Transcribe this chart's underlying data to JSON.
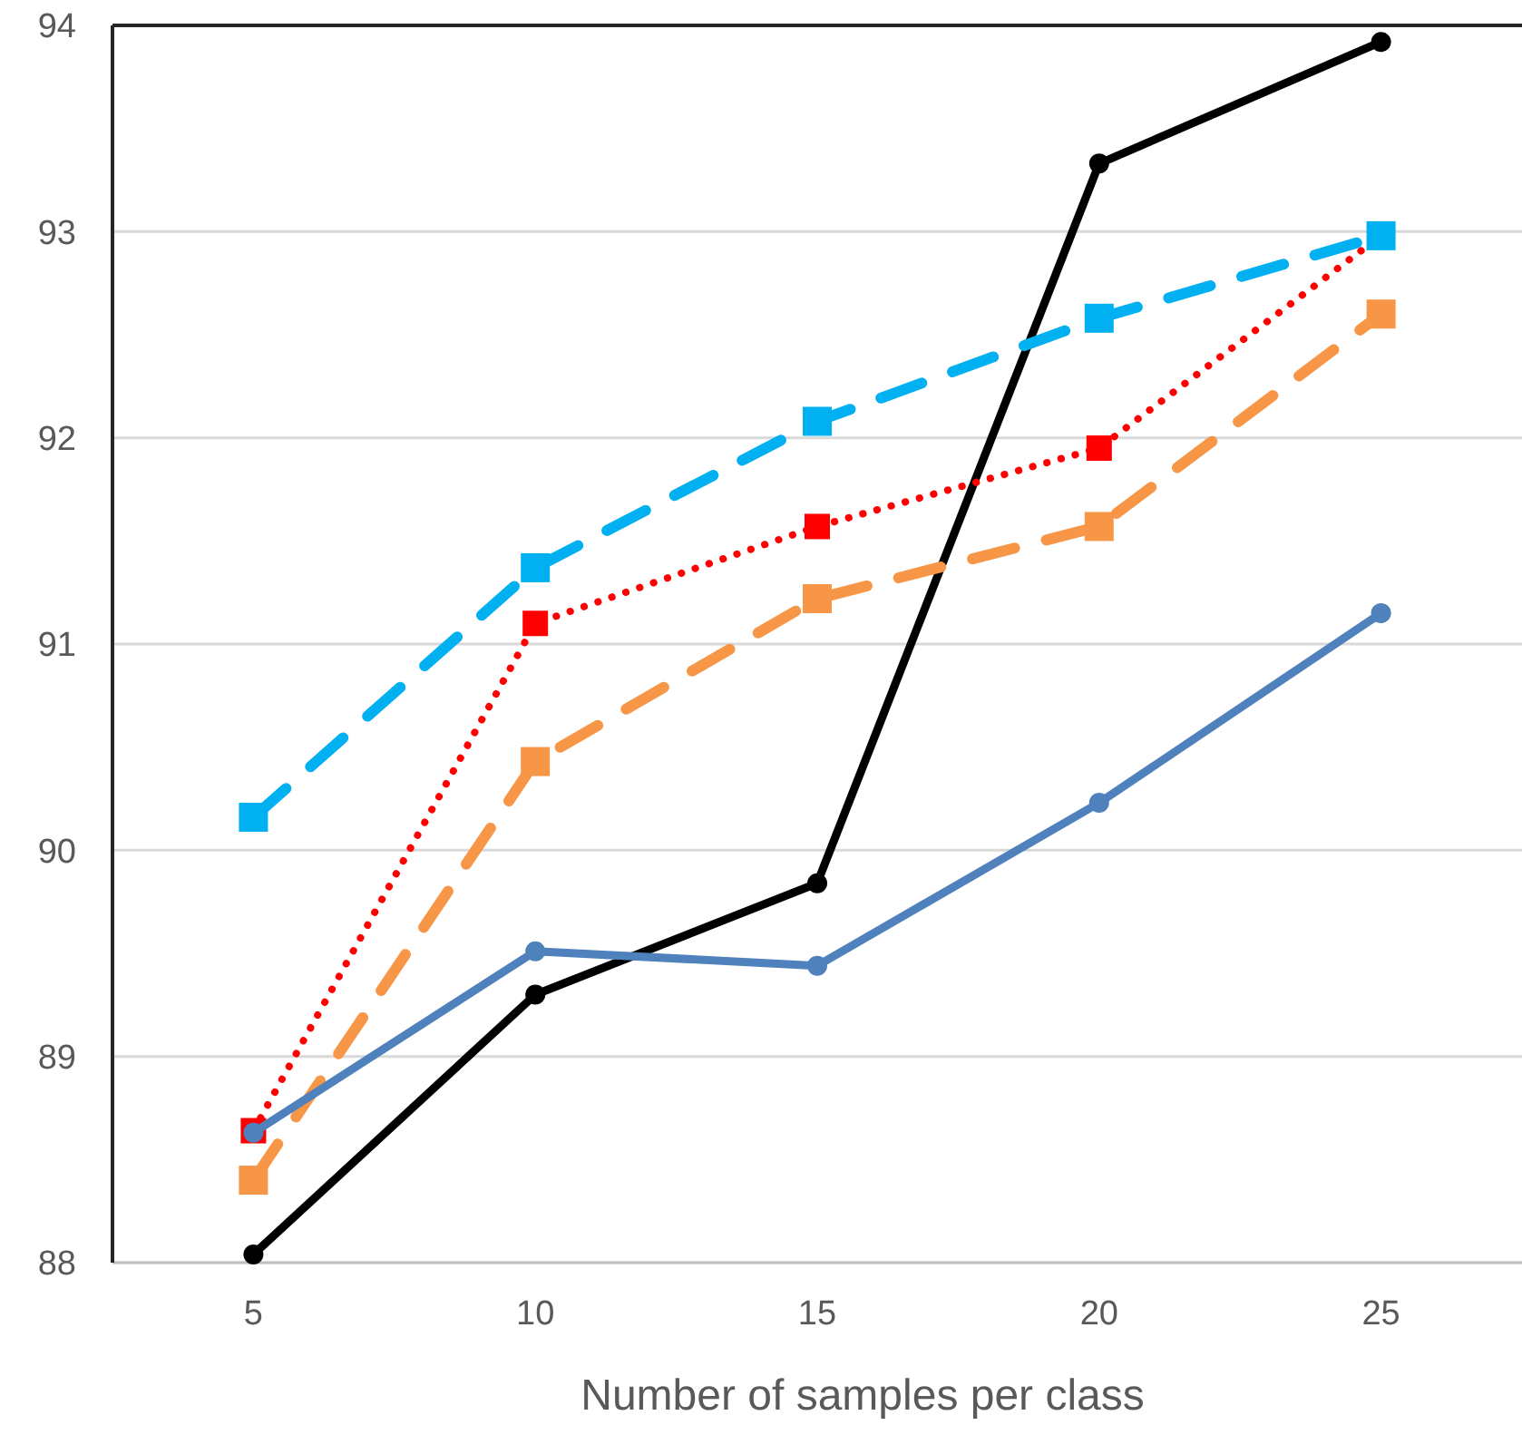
{
  "chart_data": {
    "type": "line",
    "xlabel": "Number of samples per class",
    "categories": [
      "5",
      "10",
      "15",
      "20",
      "25"
    ],
    "series": [
      {
        "color": "#000000",
        "values": [
          88.04,
          89.3,
          89.84,
          93.33,
          93.92
        ],
        "marker": "circle",
        "line_style": "solid"
      },
      {
        "color": "#f79646",
        "values": [
          88.4,
          90.43,
          91.22,
          91.57,
          92.6
        ],
        "marker": "square",
        "line_style": "dashed"
      },
      {
        "color": "#ff0000",
        "values": [
          88.64,
          91.1,
          91.57,
          91.95,
          92.98
        ],
        "marker": "square",
        "line_style": "dotted"
      },
      {
        "color": "#00b0f0",
        "values": [
          90.16,
          91.37,
          92.08,
          92.58,
          92.98
        ],
        "marker": "square",
        "line_style": "dashed"
      },
      {
        "color": "#4f81bd",
        "values": [
          88.63,
          89.51,
          89.44,
          90.23,
          91.15
        ],
        "marker": "circle",
        "line_style": "solid"
      }
    ],
    "ylim": [
      88,
      94
    ],
    "yticks": [
      88,
      89,
      90,
      91,
      92,
      93,
      94
    ],
    "grid": "y"
  }
}
